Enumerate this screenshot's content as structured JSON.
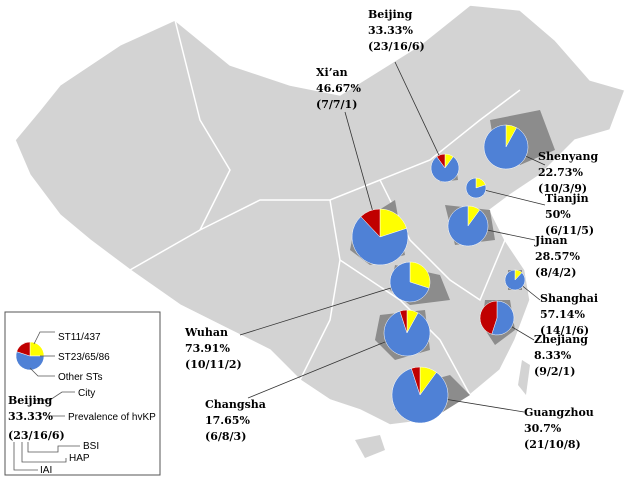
{
  "legend": {
    "series": [
      "ST11/437",
      "ST23/65/86",
      "Other STs"
    ],
    "colors": [
      "#c00000",
      "#ffff00",
      "#4f81d6"
    ],
    "example": {
      "city": "Beijing",
      "prevalence": "33.33%",
      "counts": "(23/16/6)"
    },
    "annotations": {
      "city": "City",
      "prevalence": "Prevalence of hvKP",
      "bsi": "BSI",
      "hap": "HAP",
      "iai": "IAI"
    }
  },
  "cities": [
    {
      "name": "Beijing",
      "prevalence": "33.33%",
      "counts": "(23/16/6)",
      "slices": [
        10,
        10,
        80
      ]
    },
    {
      "name": "Xi’an",
      "prevalence": "46.67%",
      "counts": "(7/7/1)",
      "slices": [
        12,
        20,
        68
      ]
    },
    {
      "name": "Shenyang",
      "prevalence": "22.73%",
      "counts": "(10/3/9)",
      "slices": [
        0,
        8,
        92
      ]
    },
    {
      "name": "Tianjin",
      "prevalence": "50%",
      "counts": "(6/11/5)",
      "slices": [
        0,
        20,
        80
      ]
    },
    {
      "name": "Jinan",
      "prevalence": "28.57%",
      "counts": "(8/4/2)",
      "slices": [
        0,
        10,
        90
      ]
    },
    {
      "name": "Shanghai",
      "prevalence": "57.14%",
      "counts": "(14/1/6)",
      "slices": [
        0,
        12,
        88
      ]
    },
    {
      "name": "Zhejiang",
      "prevalence": "8.33%",
      "counts": "(9/2/1)",
      "slices": [
        45,
        0,
        55
      ]
    },
    {
      "name": "Wuhan",
      "prevalence": "73.91%",
      "counts": "(10/11/2)",
      "slices": [
        0,
        30,
        70
      ]
    },
    {
      "name": "Changsha",
      "prevalence": "17.65%",
      "counts": "(6/8/3)",
      "slices": [
        5,
        8,
        87
      ]
    },
    {
      "name": "Guangzhou",
      "prevalence": "30.7%",
      "counts": "(21/10/8)",
      "slices": [
        5,
        10,
        85
      ]
    }
  ]
}
